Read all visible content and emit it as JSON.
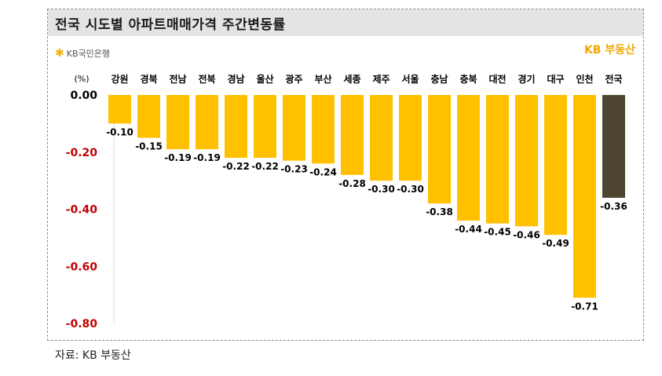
{
  "title": "전국 시도별 아파트매매가격 주간변동률",
  "logo_text": "KB국민은행",
  "brand": "KB 부동산",
  "source": "자료: KB 부동산",
  "colors": {
    "bar": "#ffc000",
    "highlight": "#4d4530",
    "axis_label_positive": "#000000",
    "axis_label_negative": "#c00000",
    "title_bg": "#e4e4e4"
  },
  "chart_data": {
    "type": "bar",
    "unit_label": "(%)",
    "categories": [
      "강원",
      "경북",
      "전남",
      "전북",
      "경남",
      "울산",
      "광주",
      "부산",
      "세종",
      "제주",
      "서울",
      "충남",
      "충북",
      "대전",
      "경기",
      "대구",
      "인천",
      "전국"
    ],
    "values": [
      -0.1,
      -0.15,
      -0.19,
      -0.19,
      -0.22,
      -0.22,
      -0.23,
      -0.24,
      -0.28,
      -0.3,
      -0.3,
      -0.38,
      -0.44,
      -0.45,
      -0.46,
      -0.49,
      -0.71,
      -0.36
    ],
    "value_labels": [
      "-0.10",
      "-0.15",
      "-0.19",
      "-0.19",
      "-0.22",
      "-0.22",
      "-0.23",
      "-0.24",
      "-0.28",
      "-0.30",
      "-0.30",
      "-0.38",
      "-0.44",
      "-0.45",
      "-0.46",
      "-0.49",
      "-0.71",
      "-0.36"
    ],
    "highlight_category": "전국",
    "ylim": [
      -0.8,
      0.0
    ],
    "y_ticks": [
      0.0,
      -0.2,
      -0.4,
      -0.6,
      -0.8
    ],
    "y_tick_labels": [
      "0.00",
      "-0.20",
      "-0.40",
      "-0.60",
      "-0.80"
    ],
    "grid": false,
    "legend": "none"
  }
}
